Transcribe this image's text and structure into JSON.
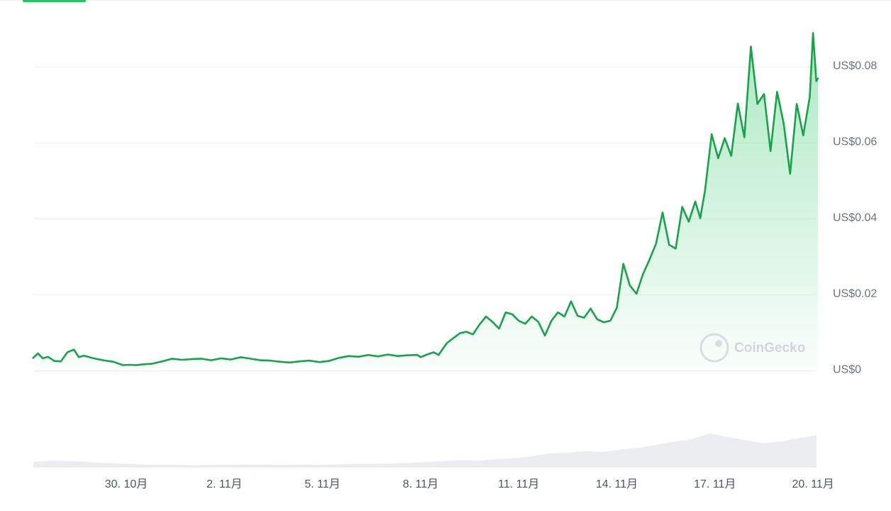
{
  "chart_data": {
    "type": "area",
    "y_ticks": [
      "US$0",
      "US$0.02",
      "US$0.04",
      "US$0.06",
      "US$0.08"
    ],
    "y_tick_values": [
      0,
      0.02,
      0.04,
      0.06,
      0.08
    ],
    "x_ticks": [
      "30. 10月",
      "2. 11月",
      "5. 11月",
      "8. 11月",
      "11. 11月",
      "14. 11月",
      "17. 11月",
      "20. 11月"
    ],
    "x_tick_days": [
      30,
      33,
      36,
      39,
      42,
      45,
      48,
      51
    ],
    "x_range": [
      27.15,
      51.15
    ],
    "ylim": [
      0,
      0.09
    ],
    "grid": true,
    "series": [
      {
        "x": [
          27.15,
          27.3,
          27.45,
          27.6,
          27.8,
          28.0,
          28.2,
          28.4,
          28.55,
          28.7,
          29.0,
          29.3,
          29.6,
          29.9,
          30.1,
          30.3,
          30.5,
          30.8,
          31.1,
          31.4,
          31.7,
          32.0,
          32.3,
          32.6,
          32.9,
          33.2,
          33.5,
          33.8,
          34.1,
          34.4,
          34.7,
          35.0,
          35.3,
          35.6,
          35.9,
          36.2,
          36.5,
          36.8,
          37.1,
          37.4,
          37.7,
          38.0,
          38.3,
          38.6,
          38.9,
          39.0,
          39.2,
          39.4,
          39.55,
          39.8,
          40.0,
          40.2,
          40.4,
          40.6,
          40.8,
          41.0,
          41.2,
          41.4,
          41.6,
          41.8,
          42.0,
          42.2,
          42.4,
          42.6,
          42.8,
          43.0,
          43.2,
          43.4,
          43.6,
          43.8,
          44.0,
          44.2,
          44.4,
          44.6,
          44.8,
          45.0,
          45.2,
          45.4,
          45.6,
          45.8,
          46.0,
          46.2,
          46.4,
          46.6,
          46.8,
          47.0,
          47.2,
          47.4,
          47.55,
          47.7,
          47.9,
          48.1,
          48.3,
          48.5,
          48.7,
          48.9,
          49.1,
          49.3,
          49.5,
          49.7,
          49.9,
          50.1,
          50.3,
          50.5,
          50.7,
          50.9,
          51.0,
          51.1,
          51.15
        ],
        "values": [
          0.0033,
          0.0045,
          0.0032,
          0.0036,
          0.0025,
          0.0024,
          0.0048,
          0.0055,
          0.0035,
          0.0039,
          0.0032,
          0.0027,
          0.0023,
          0.0014,
          0.0015,
          0.0014,
          0.0016,
          0.0018,
          0.0024,
          0.0031,
          0.0028,
          0.003,
          0.0031,
          0.0027,
          0.0032,
          0.0029,
          0.0035,
          0.0031,
          0.0027,
          0.0026,
          0.0023,
          0.0021,
          0.0024,
          0.0026,
          0.0022,
          0.0025,
          0.0033,
          0.0038,
          0.0036,
          0.0041,
          0.0037,
          0.0042,
          0.0038,
          0.004,
          0.0041,
          0.0035,
          0.0042,
          0.0048,
          0.0041,
          0.0072,
          0.0085,
          0.0098,
          0.0102,
          0.0095,
          0.0121,
          0.0142,
          0.0128,
          0.011,
          0.0153,
          0.0148,
          0.0131,
          0.0123,
          0.0142,
          0.0128,
          0.0092,
          0.0131,
          0.0153,
          0.0142,
          0.0182,
          0.0144,
          0.0139,
          0.0163,
          0.0135,
          0.0127,
          0.0131,
          0.0165,
          0.0281,
          0.0224,
          0.0202,
          0.0254,
          0.0292,
          0.0334,
          0.0416,
          0.0331,
          0.0321,
          0.0431,
          0.0392,
          0.0445,
          0.0401,
          0.0476,
          0.0622,
          0.0559,
          0.0612,
          0.0565,
          0.0703,
          0.0614,
          0.0853,
          0.0702,
          0.0728,
          0.0578,
          0.0734,
          0.0652,
          0.0518,
          0.0702,
          0.0619,
          0.0721,
          0.0889,
          0.0762,
          0.0769
        ]
      }
    ],
    "volume_values": [
      0.12,
      0.15,
      0.14,
      0.12,
      0.1,
      0.09,
      0.07,
      0.06,
      0.06,
      0.05,
      0.06,
      0.06,
      0.07,
      0.07,
      0.06,
      0.07,
      0.06,
      0.07,
      0.08,
      0.08,
      0.09,
      0.1,
      0.12,
      0.14,
      0.16,
      0.15,
      0.18,
      0.2,
      0.24,
      0.3,
      0.32,
      0.35,
      0.33,
      0.38,
      0.42,
      0.48,
      0.55,
      0.6,
      0.72,
      0.65,
      0.58,
      0.52,
      0.55,
      0.62,
      0.68
    ],
    "colors": {
      "line": "#16a34a",
      "area_top": "#22c55e",
      "volume": "#e5e7eb",
      "grid": "#eef0f3",
      "tab_indicator": "#22c55e"
    },
    "watermark": {
      "text": "CoinGecko"
    }
  }
}
